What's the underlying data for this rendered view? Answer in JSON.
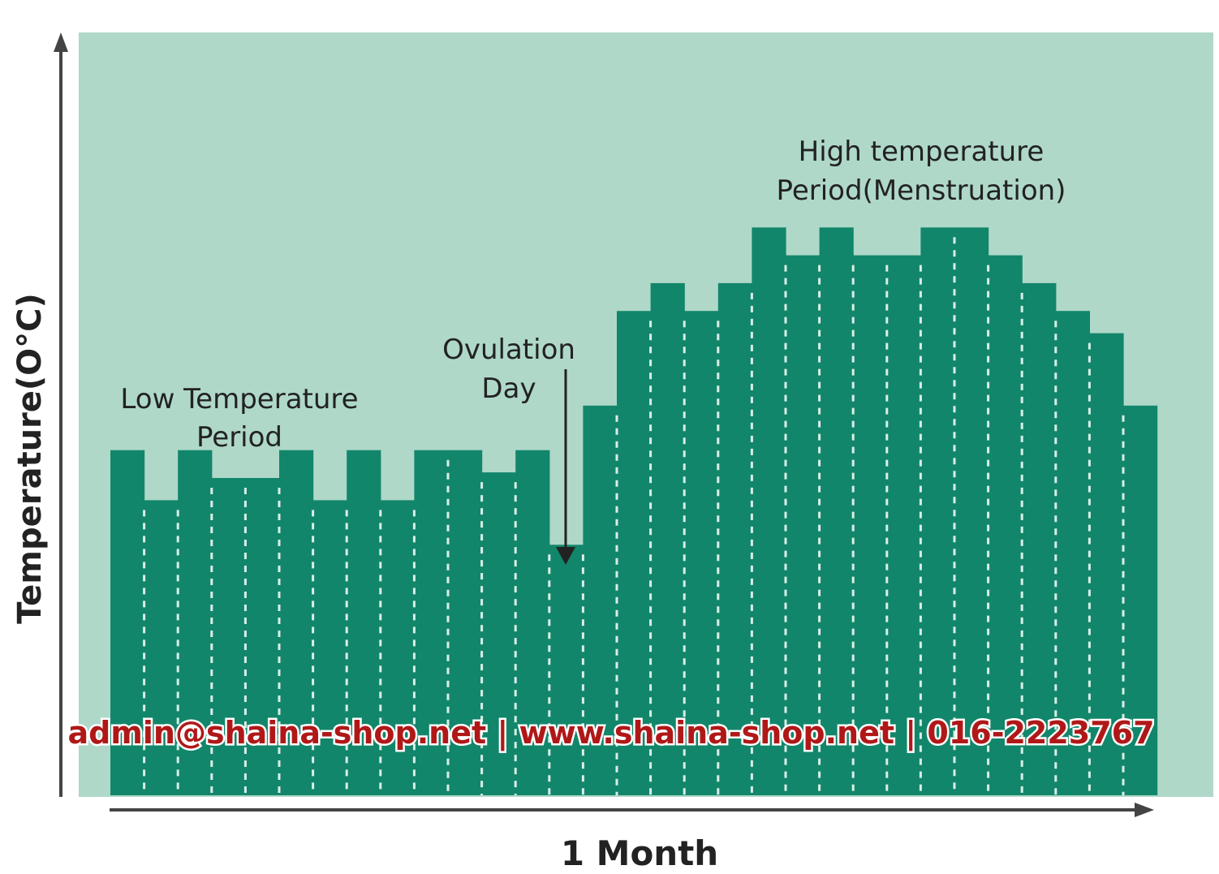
{
  "chart_data": {
    "type": "bar",
    "title": "",
    "xlabel": "1 Month",
    "ylabel": "Temperature(O°C)",
    "ylim": [
      0,
      100
    ],
    "grid": false,
    "legend": "none",
    "values": [
      62,
      53,
      62,
      57,
      57,
      62,
      53,
      62,
      53,
      62,
      62,
      58,
      62,
      45,
      70,
      87,
      92,
      87,
      92,
      102,
      97,
      102,
      97,
      97,
      102,
      102,
      97,
      92,
      87,
      83,
      70
    ],
    "annotations": {
      "low": [
        "Low Temperature",
        "Period"
      ],
      "ovulation": [
        "Ovulation",
        "Day"
      ],
      "high": [
        "High temperature",
        "Period(Menstruation)"
      ]
    },
    "colors": {
      "panel": "#afd8c9",
      "bar": "#12866a",
      "divider": "#d9efe6",
      "axis": "#444444"
    }
  },
  "watermark": "admin@shaina-shop.net | www.shaina-shop.net | 016-2223767"
}
